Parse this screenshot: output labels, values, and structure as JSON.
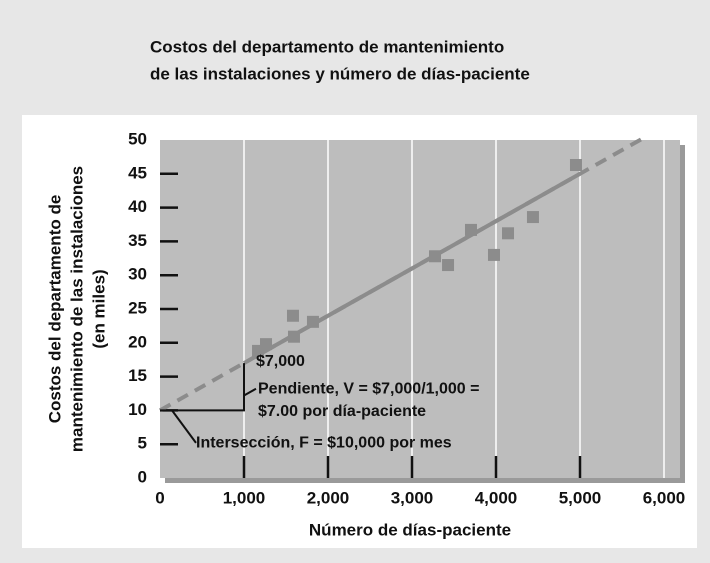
{
  "chart_data": {
    "type": "scatter",
    "title": [
      "Costos del departamento de mantenimiento",
      "de las instalaciones y número de días-paciente"
    ],
    "x_label": "Número de días-paciente",
    "y_label": [
      "Costos del departamento de",
      "mantenimiento de las instalaciones",
      "(en miles)"
    ],
    "x": [
      1167,
      1262,
      1583,
      1595,
      1821,
      3274,
      3429,
      3702,
      3976,
      4143,
      4440,
      4952
    ],
    "values": [
      18.8,
      19.8,
      24.0,
      20.9,
      23.1,
      32.8,
      31.5,
      36.7,
      33.0,
      36.2,
      38.6,
      46.3
    ],
    "color": "#8c8c8c",
    "lines": [
      {
        "style": "dashed",
        "color": "#8c8c8c",
        "x": [
          0,
          5750
        ],
        "values": [
          10,
          50.25
        ]
      },
      {
        "style": "solid",
        "color": "#8c8c8c",
        "x": [
          1000,
          5000
        ],
        "values": [
          17,
          45
        ]
      }
    ],
    "xlim": [
      0,
      6000
    ],
    "ylim": [
      0,
      50
    ],
    "xticks": [
      0,
      {
        "value": 1000,
        "label": "1,000"
      },
      {
        "value": 2000,
        "label": "2,000"
      },
      {
        "value": 3000,
        "label": "3,000"
      },
      {
        "value": 4000,
        "label": "4,000"
      },
      {
        "value": 5000,
        "label": "5,000"
      },
      {
        "value": 6000,
        "label": "6,000"
      }
    ],
    "yticks": [
      0,
      5,
      10,
      15,
      20,
      25,
      30,
      35,
      40,
      45,
      50
    ],
    "grid": true,
    "annotations": [
      "$7,000",
      "Pendiente, V = $7,000/1,000 =",
      "$7.00 por día-paciente",
      "Intersección, F = $10,000 por mes"
    ]
  }
}
